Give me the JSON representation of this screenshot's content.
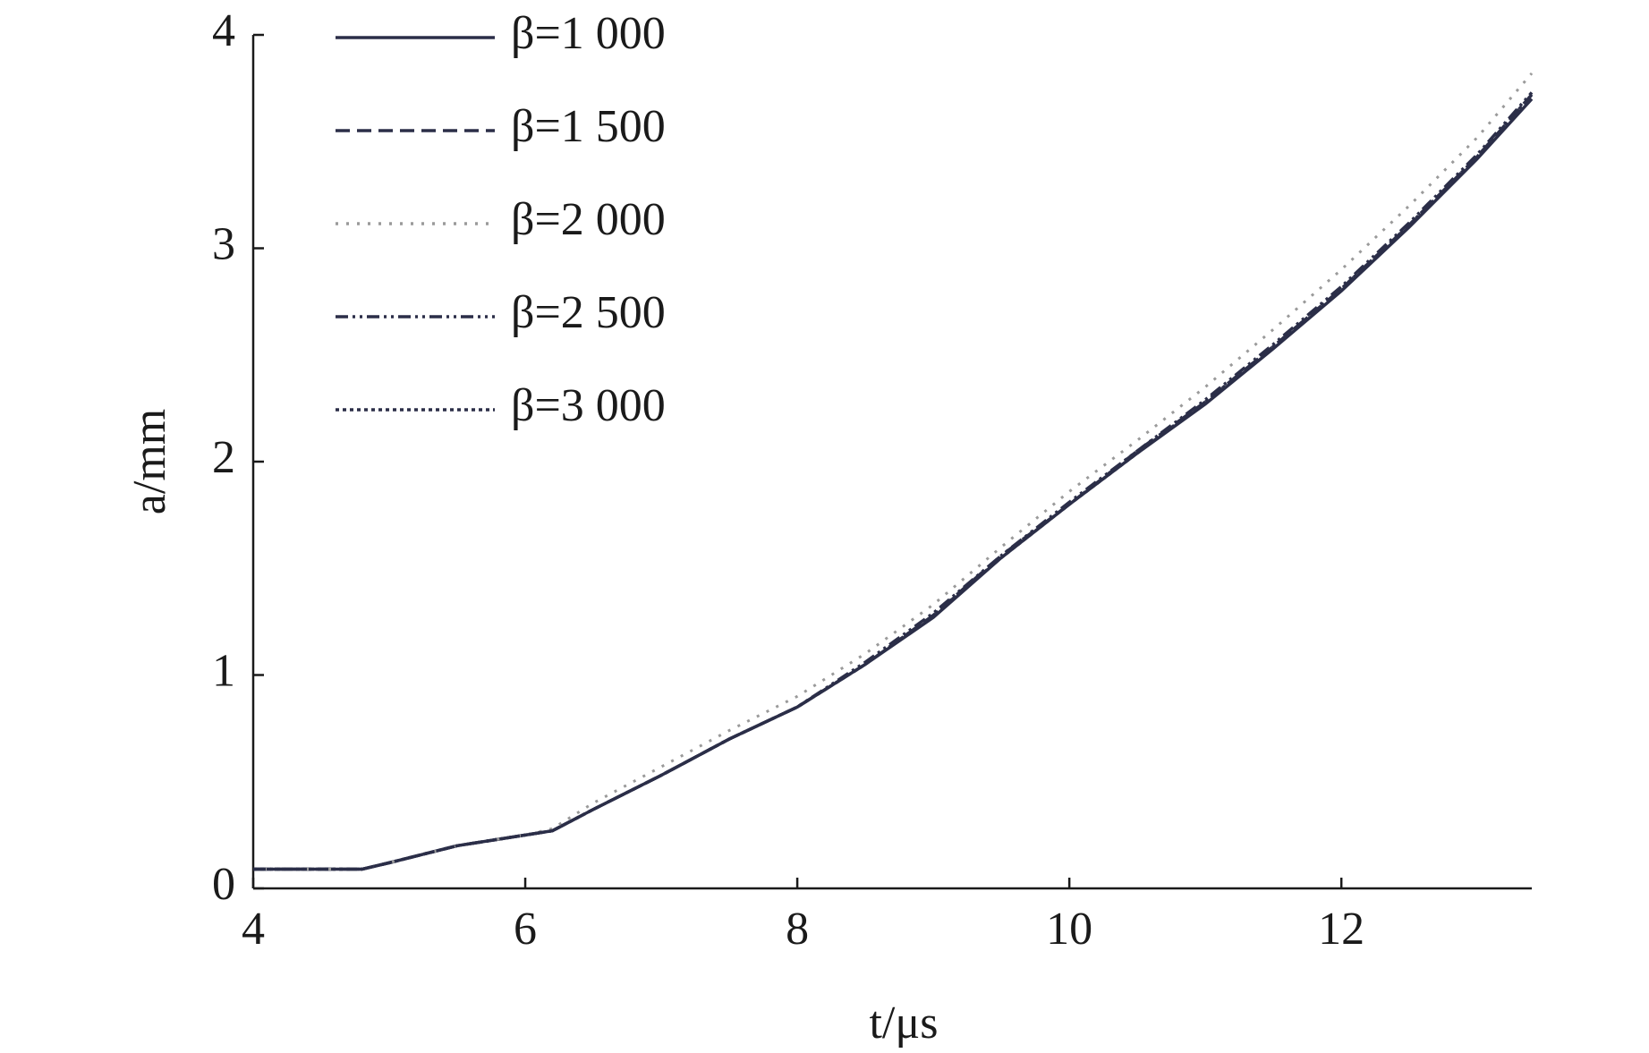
{
  "chart_data": {
    "type": "line",
    "x_label": "t/μs",
    "y_label": "a/mm",
    "x": [
      4,
      4.5,
      4.8,
      5,
      5.5,
      6,
      6.2,
      6.5,
      7,
      7.5,
      8,
      8.5,
      9,
      9.5,
      10,
      10.5,
      11,
      11.5,
      12,
      12.5,
      13,
      13.4
    ],
    "series": [
      {
        "name": "β=1 000",
        "color": "#2b2e48",
        "dash": "solid",
        "values": [
          0.09,
          0.09,
          0.09,
          0.12,
          0.2,
          0.25,
          0.27,
          0.37,
          0.53,
          0.7,
          0.85,
          1.05,
          1.27,
          1.55,
          1.8,
          2.04,
          2.27,
          2.53,
          2.8,
          3.1,
          3.42,
          3.7
        ]
      },
      {
        "name": "β=1 500",
        "color": "#2b2e48",
        "dash": "dashed",
        "values": [
          0.09,
          0.09,
          0.09,
          0.12,
          0.2,
          0.25,
          0.27,
          0.37,
          0.53,
          0.7,
          0.85,
          1.05,
          1.28,
          1.56,
          1.8,
          2.05,
          2.28,
          2.54,
          2.81,
          3.11,
          3.43,
          3.72
        ]
      },
      {
        "name": "β=2 000",
        "color": "#9a9a9a",
        "dash": "dotted",
        "values": [
          0.09,
          0.09,
          0.09,
          0.12,
          0.2,
          0.25,
          0.28,
          0.4,
          0.57,
          0.74,
          0.9,
          1.1,
          1.33,
          1.6,
          1.86,
          2.1,
          2.35,
          2.62,
          2.9,
          3.2,
          3.52,
          3.82
        ]
      },
      {
        "name": "β=2 500",
        "color": "#2b2e48",
        "dash": "dashdotdot",
        "values": [
          0.09,
          0.09,
          0.09,
          0.12,
          0.2,
          0.25,
          0.27,
          0.37,
          0.53,
          0.7,
          0.85,
          1.06,
          1.29,
          1.56,
          1.81,
          2.05,
          2.29,
          2.55,
          2.82,
          3.12,
          3.44,
          3.73
        ]
      },
      {
        "name": "β=3 000",
        "color": "#2b2e48",
        "dash": "densedot",
        "values": [
          0.09,
          0.09,
          0.09,
          0.12,
          0.2,
          0.25,
          0.27,
          0.37,
          0.53,
          0.7,
          0.85,
          1.05,
          1.28,
          1.55,
          1.8,
          2.04,
          2.28,
          2.54,
          2.81,
          3.11,
          3.43,
          3.72
        ]
      }
    ],
    "xlim": [
      4,
      13.4
    ],
    "xticks": [
      4,
      6,
      8,
      10,
      12
    ],
    "ylim": [
      0,
      4
    ],
    "yticks": [
      0,
      1,
      2,
      3,
      4
    ],
    "legend": "upper-left"
  }
}
